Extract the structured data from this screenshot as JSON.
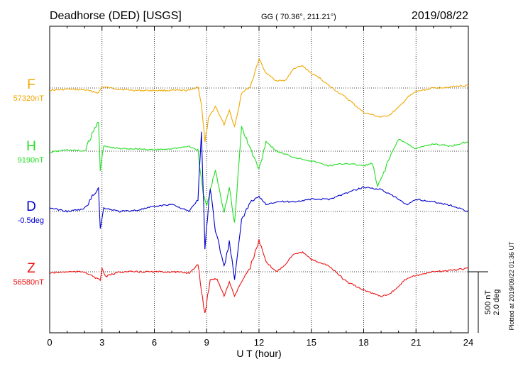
{
  "header": {
    "station": "Deadhorse (DED)  [USGS]",
    "coords": "GG ( 70.36°, 211.21°)",
    "date": "2019/08/22"
  },
  "scale": {
    "line1": "500 nT",
    "line2": "2.0 deg"
  },
  "footer": {
    "plotted": "Plotted at 2019/09/22 01:36 UT"
  },
  "chart_data": {
    "type": "line",
    "xlabel": "U T (hour)",
    "xlim": [
      0,
      24
    ],
    "xticks": [
      0,
      3,
      6,
      9,
      12,
      15,
      18,
      21,
      24
    ],
    "xtick_labels": [
      "0",
      "3",
      "6",
      "9",
      "12",
      "15",
      "18",
      "21",
      "24"
    ],
    "scale_bar_nT": 500,
    "series": [
      {
        "name": "F",
        "baseline_label": "57320nT",
        "color": "#f0a800",
        "x": [
          0,
          1,
          2,
          2.8,
          3,
          4,
          5,
          6,
          7,
          8,
          8.5,
          8.7,
          8.9,
          9.1,
          9.5,
          10,
          10.3,
          10.6,
          11,
          11.5,
          12,
          12.4,
          13,
          13.5,
          14,
          14.5,
          15,
          15.5,
          16,
          17,
          18,
          19,
          19.5,
          20,
          20.5,
          21,
          22,
          23,
          24
        ],
        "y": [
          -20,
          -10,
          -15,
          -40,
          10,
          -10,
          -20,
          -20,
          -20,
          -20,
          10,
          -130,
          -450,
          -250,
          -150,
          -300,
          -180,
          -320,
          -40,
          10,
          240,
          120,
          60,
          60,
          160,
          180,
          120,
          80,
          20,
          -80,
          -200,
          -240,
          -220,
          -160,
          -80,
          -30,
          0,
          10,
          20
        ]
      },
      {
        "name": "H",
        "baseline_label": "9190nT",
        "color": "#22dd22",
        "x": [
          0,
          1,
          2,
          2.8,
          2.9,
          3.1,
          4,
          5,
          6,
          7,
          8,
          8.5,
          8.8,
          9,
          9.5,
          10,
          10.3,
          10.6,
          11,
          11.5,
          12,
          12.4,
          13,
          14,
          15,
          16,
          17,
          18,
          18.5,
          18.8,
          19.5,
          20,
          21,
          22,
          23,
          24
        ],
        "y": [
          -10,
          10,
          0,
          250,
          -150,
          40,
          20,
          20,
          10,
          20,
          40,
          0,
          -350,
          -450,
          -150,
          -500,
          -300,
          -600,
          200,
          20,
          -150,
          80,
          0,
          -50,
          -80,
          -120,
          -100,
          -120,
          -100,
          -300,
          -50,
          100,
          20,
          60,
          40,
          80
        ]
      },
      {
        "name": "D",
        "baseline_label": "-0.5deg",
        "color": "#0000cc",
        "x": [
          0,
          1,
          2,
          2.8,
          2.9,
          3.1,
          4,
          5,
          6,
          7,
          8,
          8.5,
          8.7,
          8.9,
          9.2,
          9.5,
          10,
          10.3,
          10.6,
          11,
          11.5,
          12,
          12.4,
          13,
          14,
          15,
          16,
          17,
          18,
          19,
          20,
          20.5,
          21,
          22,
          23,
          24
        ],
        "y": [
          30,
          0,
          20,
          200,
          -150,
          30,
          0,
          10,
          40,
          60,
          0,
          100,
          650,
          -300,
          200,
          -150,
          -450,
          -250,
          -550,
          -80,
          80,
          120,
          60,
          80,
          80,
          100,
          100,
          150,
          200,
          180,
          100,
          50,
          100,
          80,
          50,
          0
        ]
      },
      {
        "name": "Z",
        "baseline_label": "56580nT",
        "color": "#ee1111",
        "x": [
          0,
          1,
          2,
          2.9,
          3,
          3.2,
          4,
          5,
          6,
          7,
          8,
          8.5,
          8.7,
          8.9,
          9.2,
          9.6,
          10,
          10.3,
          10.6,
          11,
          11.5,
          12,
          12.4,
          13,
          13.5,
          14,
          14.5,
          15,
          16,
          17,
          18,
          19,
          19.5,
          20,
          20.5,
          21,
          22,
          23,
          24
        ],
        "y": [
          -10,
          0,
          0,
          -70,
          30,
          -40,
          0,
          0,
          0,
          0,
          -10,
          60,
          -150,
          -350,
          -60,
          -60,
          -200,
          -80,
          -200,
          -80,
          40,
          250,
          80,
          0,
          60,
          150,
          160,
          100,
          50,
          -80,
          -150,
          -200,
          -180,
          -120,
          -50,
          -30,
          0,
          10,
          30
        ]
      }
    ]
  }
}
